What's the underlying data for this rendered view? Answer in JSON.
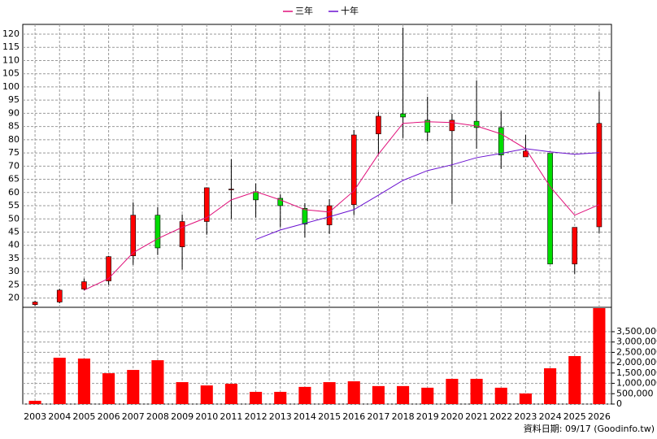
{
  "chart_data": {
    "type": "candlestick",
    "categories": [
      "2003",
      "2004",
      "2005",
      "2006",
      "2007",
      "2008",
      "2009",
      "2010",
      "2011",
      "2012",
      "2013",
      "2014",
      "2015",
      "2016",
      "2017",
      "2018",
      "2019",
      "2020",
      "2021",
      "2022",
      "2023",
      "2024",
      "2025",
      "2026"
    ],
    "open": [
      17.5,
      18.5,
      23.4,
      26.5,
      36,
      51.4,
      39.4,
      49,
      61,
      60.3,
      57.8,
      54,
      47.7,
      55.4,
      82.2,
      89.8,
      87.4,
      83.4,
      87,
      84.6,
      73.5,
      74.8,
      32.9,
      47
    ],
    "high": [
      19,
      23.5,
      27.4,
      36,
      56.3,
      54.5,
      51.7,
      61.8,
      72.6,
      63.4,
      59.4,
      56,
      57.5,
      83.7,
      90.5,
      122.5,
      96.3,
      89.8,
      102.5,
      90.8,
      81.8,
      74.8,
      46.8,
      98.2
    ],
    "low": [
      17,
      18,
      23,
      25,
      32.6,
      36.3,
      30.8,
      44,
      50,
      50.5,
      46.8,
      43,
      44.3,
      51.4,
      74.5,
      80.6,
      79.4,
      55.7,
      76.6,
      69,
      73.5,
      32.9,
      29.2,
      44.6
    ],
    "close": [
      18.5,
      23,
      26.2,
      35.7,
      51.4,
      39,
      49,
      61.8,
      61.3,
      57.2,
      55,
      48,
      55,
      81.8,
      88.9,
      88.6,
      82.8,
      87.4,
      84.6,
      74.2,
      75.7,
      32.9,
      46.8,
      86.2
    ],
    "up_color": "#ff0000",
    "down_color": "#00dd00",
    "series": [
      {
        "name": "三年",
        "color": "#e0107a",
        "values": [
          null,
          null,
          23,
          27.4,
          37.2,
          42.5,
          46.8,
          50.5,
          57.2,
          60.3,
          57.2,
          53.5,
          52.6,
          60.6,
          74.5,
          86.2,
          86.8,
          86.5,
          85.2,
          82.2,
          76.6,
          62.2,
          51.4,
          55.4
        ]
      },
      {
        "name": "十年",
        "color": "#6a10d0",
        "values": [
          null,
          null,
          null,
          null,
          null,
          null,
          null,
          null,
          null,
          42.2,
          45.8,
          48.3,
          50.8,
          53.5,
          59,
          64.6,
          68.3,
          70.5,
          73.2,
          74.8,
          76.6,
          75.4,
          74.5,
          75.1
        ]
      },
      {
        "type": "bar",
        "axis": "y2",
        "color": "#ff0000",
        "values": [
          157000,
          2240000,
          2200000,
          1490000,
          1650000,
          2120000,
          1060000,
          900000,
          980000,
          590000,
          590000,
          830000,
          1060000,
          1100000,
          870000,
          870000,
          790000,
          1220000,
          1220000,
          790000,
          510000,
          1730000,
          2320000,
          4640000
        ]
      }
    ],
    "ylim": [
      16.5,
      123.7
    ],
    "yticks": [
      20,
      25,
      30,
      35,
      40,
      45,
      50,
      55,
      60,
      65,
      70,
      75,
      80,
      85,
      90,
      95,
      100,
      105,
      110,
      115,
      120
    ],
    "y2lim": [
      0,
      4680000
    ],
    "y2ticks": [
      0,
      {
        "value": 500000,
        "label": "500,000"
      },
      {
        "value": 1000000,
        "label": "1,000,000"
      },
      {
        "value": 1500000,
        "label": "1,500,000"
      },
      {
        "value": 2000000,
        "label": "2,000,000"
      },
      {
        "value": 2500000,
        "label": "2,500,000"
      },
      {
        "value": 3000000,
        "label": "3,000,000"
      },
      {
        "value": 3500000,
        "label": "3,500,000"
      }
    ],
    "grid": true,
    "legend": "top",
    "note": "資料日期: 09/17 (Goodinfo.tw)"
  }
}
